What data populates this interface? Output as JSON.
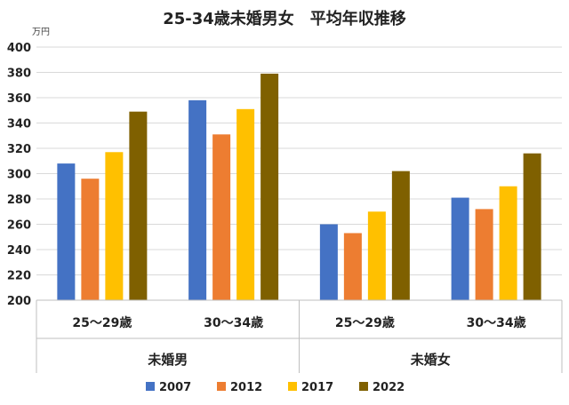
{
  "chart_data": {
    "type": "bar",
    "title": "25-34歳未婚男女　平均年収推移",
    "unit": "万円",
    "ylim": [
      200,
      400
    ],
    "yticks": [
      200,
      220,
      240,
      260,
      280,
      300,
      320,
      340,
      360,
      380,
      400
    ],
    "grid": true,
    "legend_position": "bottom",
    "groups": [
      {
        "label": "未婚男",
        "categories": [
          "25～29歳",
          "30～34歳"
        ]
      },
      {
        "label": "未婚女",
        "categories": [
          "25～29歳",
          "30～34歳"
        ]
      }
    ],
    "categories": [
      "25～29歳",
      "30～34歳",
      "25～29歳",
      "30～34歳"
    ],
    "series": [
      {
        "name": "2007",
        "color": "#4472C4",
        "values": [
          308,
          358,
          260,
          281
        ]
      },
      {
        "name": "2012",
        "color": "#ED7D31",
        "values": [
          296,
          331,
          253,
          272
        ]
      },
      {
        "name": "2017",
        "color": "#FFC000",
        "values": [
          317,
          351,
          270,
          290
        ]
      },
      {
        "name": "2022",
        "color": "#7F6000",
        "values": [
          349,
          379,
          302,
          316
        ]
      }
    ]
  }
}
